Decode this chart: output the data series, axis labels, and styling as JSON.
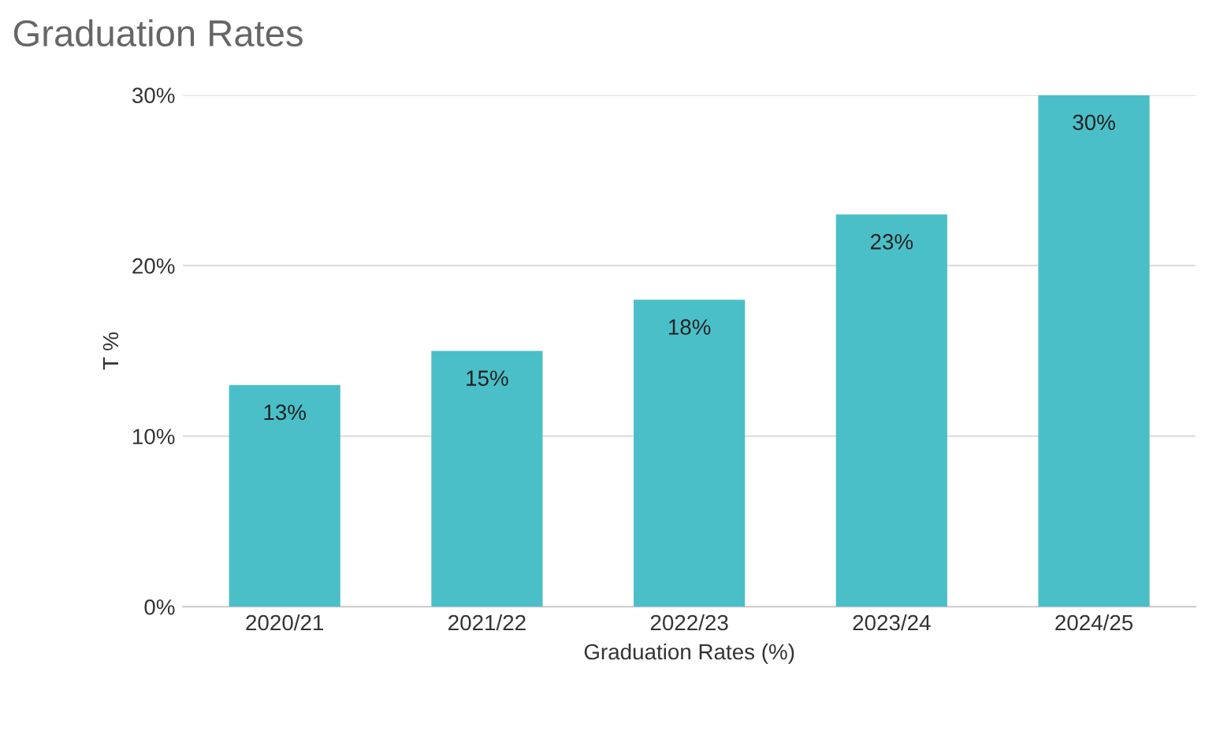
{
  "chart_data": {
    "type": "bar",
    "title": "Graduation Rates",
    "xlabel": "Graduation Rates (%)",
    "ylabel": "T %",
    "categories": [
      "2020/21",
      "2021/22",
      "2022/23",
      "2023/24",
      "2024/25"
    ],
    "values": [
      13,
      15,
      18,
      23,
      30
    ],
    "value_labels": [
      "13%",
      "15%",
      "18%",
      "23%",
      "30%"
    ],
    "color": "#4bbfc8",
    "ylim": [
      0,
      30
    ],
    "yticks": [
      {
        "value": 0,
        "label": "0%"
      },
      {
        "value": 10,
        "label": "10%"
      },
      {
        "value": 20,
        "label": "20%"
      },
      {
        "value": 30,
        "label": "30%"
      }
    ],
    "grid": "y"
  }
}
